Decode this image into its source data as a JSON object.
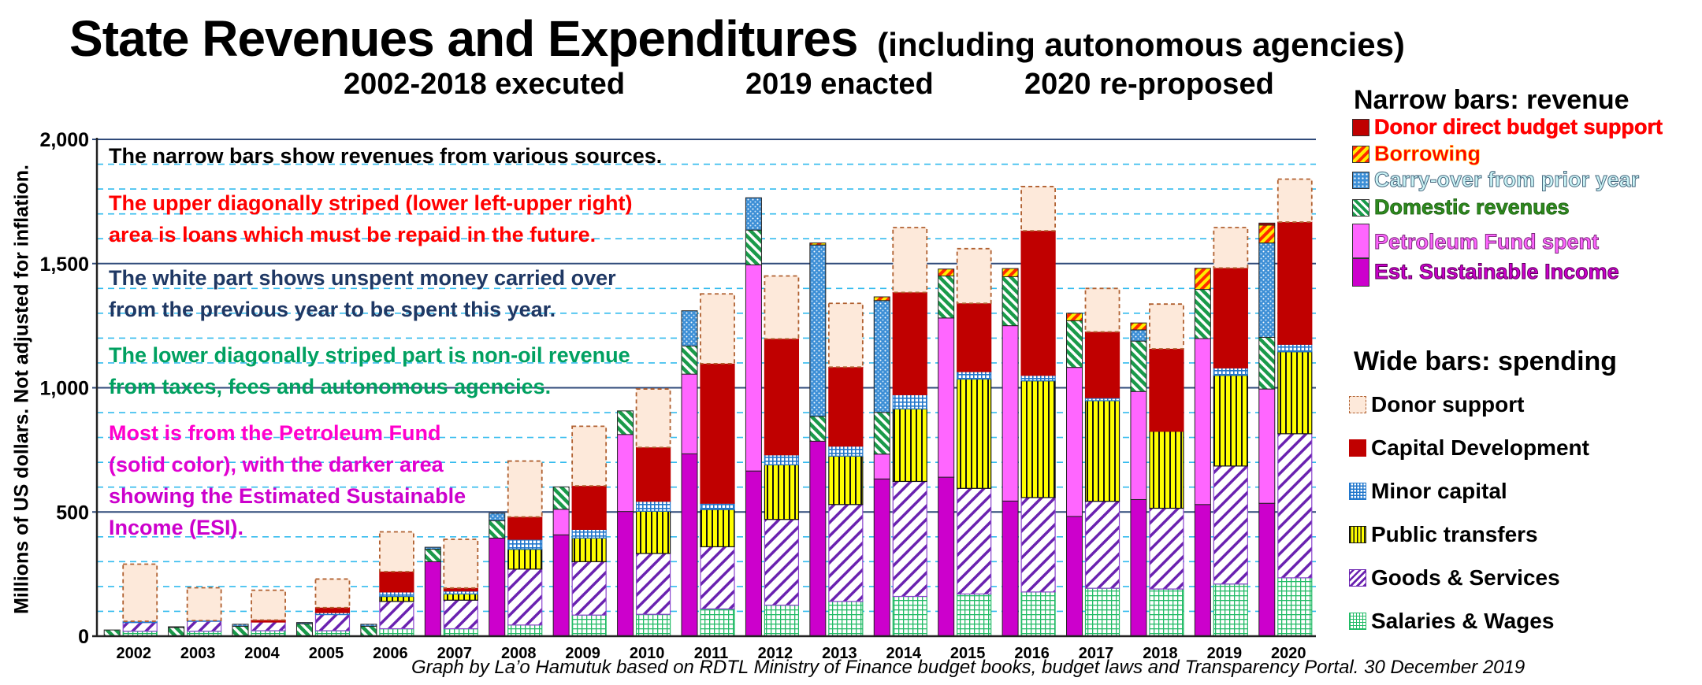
{
  "title": {
    "main": "State Revenues and Expenditures",
    "qualifier": "(including autonomous agencies)",
    "subtitles": [
      "2002-2018 executed",
      "2019 enacted",
      "2020 re-proposed"
    ]
  },
  "legend": {
    "revenue_heading": "Narrow bars: revenue",
    "revenue_items": [
      {
        "key": "donor_direct",
        "label": "Donor direct budget support",
        "color": "#ff0000",
        "icon": "solid-dark-red-swatch"
      },
      {
        "key": "borrowing",
        "label": "Borrowing",
        "color": "#ff0000",
        "icon": "yellow-red-diagonal-swatch"
      },
      {
        "key": "carry_over",
        "label": "Carry-over from prior year",
        "color": "#ccf5f7",
        "icon": "blue-dotted-swatch"
      },
      {
        "key": "domestic",
        "label": "Domestic revenues",
        "color": "#2e8b1e",
        "icon": "green-diagonal-swatch"
      },
      {
        "key": "pf_spent",
        "label": "Petroleum Fund spent",
        "color": "#ff66ff",
        "icon": "pink-solid-swatch"
      },
      {
        "key": "esi",
        "label": "Est. Sustainable Income",
        "color": "#cc00cc",
        "icon": "magenta-solid-swatch"
      }
    ],
    "spending_heading": "Wide bars: spending",
    "spending_items": [
      {
        "key": "donor_support",
        "label": "Donor support",
        "icon": "peach-dashed-swatch"
      },
      {
        "key": "capital_dev",
        "label": "Capital Development",
        "icon": "dark-red-solid-swatch"
      },
      {
        "key": "minor_capital",
        "label": "Minor capital",
        "icon": "blue-grid-swatch"
      },
      {
        "key": "public_transfers",
        "label": "Public transfers",
        "icon": "yellow-vertical-stripe-swatch"
      },
      {
        "key": "goods_services",
        "label": "Goods & Services",
        "icon": "purple-diagonal-swatch"
      },
      {
        "key": "salaries",
        "label": "Salaries & Wages",
        "icon": "green-grid-swatch"
      }
    ]
  },
  "notes": [
    {
      "text": "The narrow bars show revenues from various sources.",
      "color": "#000000"
    },
    {
      "text": "The upper diagonally striped (lower left-upper right)",
      "color": "#ff0000"
    },
    {
      "text": "area is loans which must be repaid in the future.",
      "color": "#ff0000"
    },
    {
      "text": "The white part shows unspent money carried over",
      "color": "#1f3864"
    },
    {
      "text": "from the previous year to be spent this year.",
      "color": "#1f3864"
    },
    {
      "text": "The lower diagonally striped part is non-oil revenue",
      "color": "#00a060"
    },
    {
      "text": "from taxes, fees and autonomous agencies.",
      "color": "#00a060"
    },
    {
      "text": "Most is from the Petroleum Fund",
      "color": "#ff00cc"
    },
    {
      "text": "(solid color), with the darker area",
      "color": "#e000d0"
    },
    {
      "text": "showing the Estimated Sustainable",
      "color": "#cc00cc"
    },
    {
      "text": "Income (ESI).",
      "color": "#cc00cc"
    }
  ],
  "footer": "Graph by La’o Hamutuk based on RDTL Ministry of Finance budget books, budget laws and Transparency Portal.   30 December 2019",
  "chart_data": {
    "type": "bar",
    "stacked": true,
    "title": "State Revenues and Expenditures (including autonomous agencies)",
    "ylabel": "Millions of US dollars.   Not adjusted for inflation.",
    "xlabel": "",
    "ylim": [
      0,
      2000
    ],
    "yticks": [
      0,
      500,
      1000,
      1500,
      2000
    ],
    "ytick_labels": [
      "0",
      "500",
      "1,000",
      "1,500",
      "2,000"
    ],
    "minor_gridline_step": 100,
    "grid": true,
    "legend_position": "right",
    "categories": [
      "2002",
      "2003",
      "2004",
      "2005",
      "2006",
      "2007",
      "2008",
      "2009",
      "2010",
      "2011",
      "2012",
      "2013",
      "2014",
      "2015",
      "2016",
      "2017",
      "2018",
      "2019",
      "2020"
    ],
    "revenue_series": [
      {
        "key": "esi",
        "name": "Est. Sustainable Income",
        "values": [
          0,
          0,
          0,
          0,
          0,
          300,
          395,
          408,
          502,
          734,
          665,
          785,
          633,
          640,
          544,
          482,
          550,
          530,
          535
        ]
      },
      {
        "key": "pf_spent",
        "name": "Petroleum Fund spent",
        "values": [
          0,
          0,
          0,
          0,
          0,
          0,
          0,
          103,
          310,
          321,
          830,
          0,
          100,
          641,
          706,
          600,
          435,
          668,
          460
        ]
      },
      {
        "key": "domestic",
        "name": "Domestic revenues",
        "values": [
          25,
          35,
          40,
          50,
          40,
          50,
          70,
          90,
          95,
          113,
          140,
          100,
          168,
          169,
          197,
          188,
          203,
          198,
          208
        ]
      },
      {
        "key": "carry_over",
        "name": "Carry-over from prior year",
        "values": [
          0,
          3,
          8,
          5,
          8,
          8,
          30,
          0,
          0,
          142,
          130,
          690,
          450,
          0,
          0,
          0,
          45,
          0,
          380
        ]
      },
      {
        "key": "borrowing",
        "name": "Borrowing",
        "values": [
          0,
          0,
          0,
          0,
          0,
          0,
          0,
          0,
          0,
          0,
          0,
          8,
          15,
          28,
          33,
          30,
          28,
          85,
          72
        ]
      },
      {
        "key": "donor_direct",
        "name": "Donor direct budget support",
        "values": [
          0,
          0,
          0,
          0,
          0,
          0,
          0,
          0,
          0,
          0,
          0,
          0,
          0,
          0,
          0,
          0,
          0,
          0,
          8
        ]
      }
    ],
    "spending_series": [
      {
        "key": "salaries",
        "name": "Salaries & Wages",
        "values": [
          20,
          20,
          22,
          22,
          30,
          30,
          45,
          85,
          88,
          110,
          125,
          140,
          160,
          170,
          178,
          193,
          190,
          210,
          235
        ]
      },
      {
        "key": "goods_services",
        "name": "Goods & Services",
        "values": [
          35,
          40,
          35,
          65,
          110,
          115,
          225,
          215,
          245,
          250,
          345,
          390,
          463,
          425,
          380,
          350,
          325,
          475,
          580
        ]
      },
      {
        "key": "public_transfers",
        "name": "Public transfers",
        "values": [
          0,
          0,
          0,
          0,
          20,
          25,
          80,
          95,
          170,
          150,
          220,
          195,
          292,
          440,
          470,
          405,
          310,
          365,
          330
        ]
      },
      {
        "key": "minor_capital",
        "name": "Minor capital",
        "values": [
          5,
          3,
          0,
          8,
          18,
          12,
          40,
          35,
          40,
          25,
          40,
          40,
          57,
          30,
          22,
          12,
          0,
          30,
          30
        ]
      },
      {
        "key": "capital_dev",
        "name": "Capital Development",
        "values": [
          0,
          0,
          8,
          20,
          82,
          12,
          90,
          175,
          217,
          562,
          467,
          318,
          412,
          275,
          582,
          265,
          332,
          402,
          492
        ]
      },
      {
        "key": "donor_support",
        "name": "Donor support",
        "values": [
          230,
          132,
          120,
          115,
          160,
          196,
          225,
          240,
          235,
          281,
          253,
          257,
          261,
          220,
          178,
          175,
          180,
          163,
          173
        ]
      }
    ]
  }
}
